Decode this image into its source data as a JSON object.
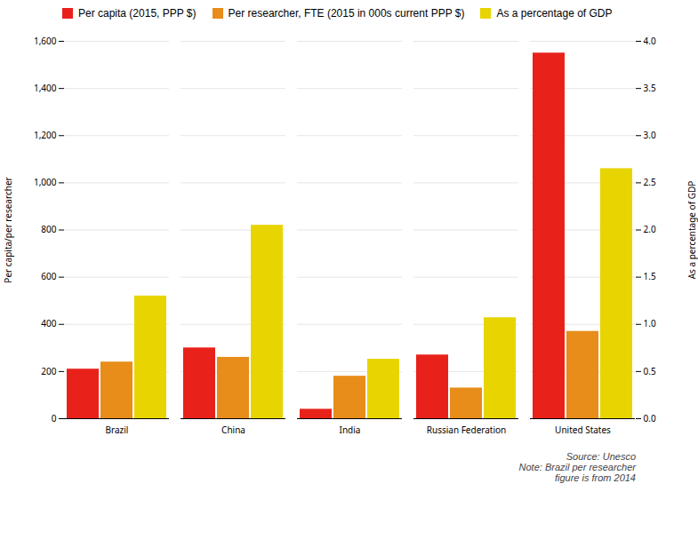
{
  "chart_data": {
    "type": "bar",
    "categories": [
      "Brazil",
      "China",
      "India",
      "Russian Federation",
      "United States"
    ],
    "series": [
      {
        "name": "Per capita (2015, PPP $)",
        "color": "#E8221A",
        "values": [
          210,
          300,
          40,
          270,
          1550
        ]
      },
      {
        "name": "Per researcher, FTE (2015 in 000s current PPP $)",
        "color": "#E88C1A",
        "values": [
          240,
          260,
          180,
          130,
          370
        ]
      },
      {
        "name": "As a percentage of GDP",
        "color": "#E8D400",
        "values": [
          1.3,
          2.05,
          0.63,
          1.07,
          2.65
        ],
        "axis": "y2"
      }
    ],
    "ylabel": "Per capita/per researcher",
    "y2label": "As a percentage of GDP",
    "ylim": [
      0,
      1600
    ],
    "yticks": [
      0,
      200,
      400,
      600,
      800,
      {
        "value": 1000,
        "label": "1,000"
      },
      {
        "value": 1200,
        "label": "1,200"
      },
      {
        "value": 1400,
        "label": "1,400"
      },
      {
        "value": 1600,
        "label": "1,600"
      }
    ],
    "y2lim": [
      0,
      4.0
    ],
    "y2ticks": [
      {
        "value": 0,
        "label": "0.0"
      },
      0.5,
      {
        "value": 1,
        "label": "1.0"
      },
      1.5,
      {
        "value": 2,
        "label": "2.0"
      },
      2.5,
      {
        "value": 3,
        "label": "3.0"
      },
      3.5,
      {
        "value": 4,
        "label": "4.0"
      }
    ],
    "grid": true,
    "legend": "upper left",
    "annotation": "Source: Unesco\nNote: Brazil per researcher\nfigure is from 2014"
  }
}
